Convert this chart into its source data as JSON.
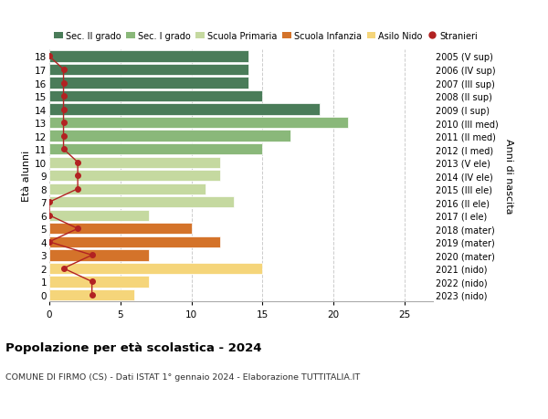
{
  "ages": [
    18,
    17,
    16,
    15,
    14,
    13,
    12,
    11,
    10,
    9,
    8,
    7,
    6,
    5,
    4,
    3,
    2,
    1,
    0
  ],
  "right_labels": [
    "2005 (V sup)",
    "2006 (IV sup)",
    "2007 (III sup)",
    "2008 (II sup)",
    "2009 (I sup)",
    "2010 (III med)",
    "2011 (II med)",
    "2012 (I med)",
    "2013 (V ele)",
    "2014 (IV ele)",
    "2015 (III ele)",
    "2016 (II ele)",
    "2017 (I ele)",
    "2018 (mater)",
    "2019 (mater)",
    "2020 (mater)",
    "2021 (nido)",
    "2022 (nido)",
    "2023 (nido)"
  ],
  "bar_values": [
    14,
    14,
    14,
    15,
    19,
    21,
    17,
    15,
    12,
    12,
    11,
    13,
    7,
    10,
    12,
    7,
    15,
    7,
    6
  ],
  "stranieri_values": [
    0,
    1,
    1,
    1,
    1,
    1,
    1,
    1,
    2,
    2,
    2,
    0,
    0,
    2,
    0,
    3,
    1,
    3,
    3
  ],
  "colors": {
    "sec2": "#4a7c59",
    "sec1": "#8ab87a",
    "primaria": "#c5d9a0",
    "infanzia": "#d4732a",
    "nido": "#f5d57a",
    "stranieri": "#b22222"
  },
  "title": "Popolazione per età scolastica - 2024",
  "subtitle": "COMUNE DI FIRMO (CS) - Dati ISTAT 1° gennaio 2024 - Elaborazione TUTTITALIA.IT",
  "ylabel_left": "Età alunni",
  "ylabel_right": "Anni di nascita",
  "xlim": [
    0,
    27
  ],
  "xticks": [
    0,
    5,
    10,
    15,
    20,
    25
  ],
  "legend_labels": [
    "Sec. II grado",
    "Sec. I grado",
    "Scuola Primaria",
    "Scuola Infanzia",
    "Asilo Nido",
    "Stranieri"
  ]
}
